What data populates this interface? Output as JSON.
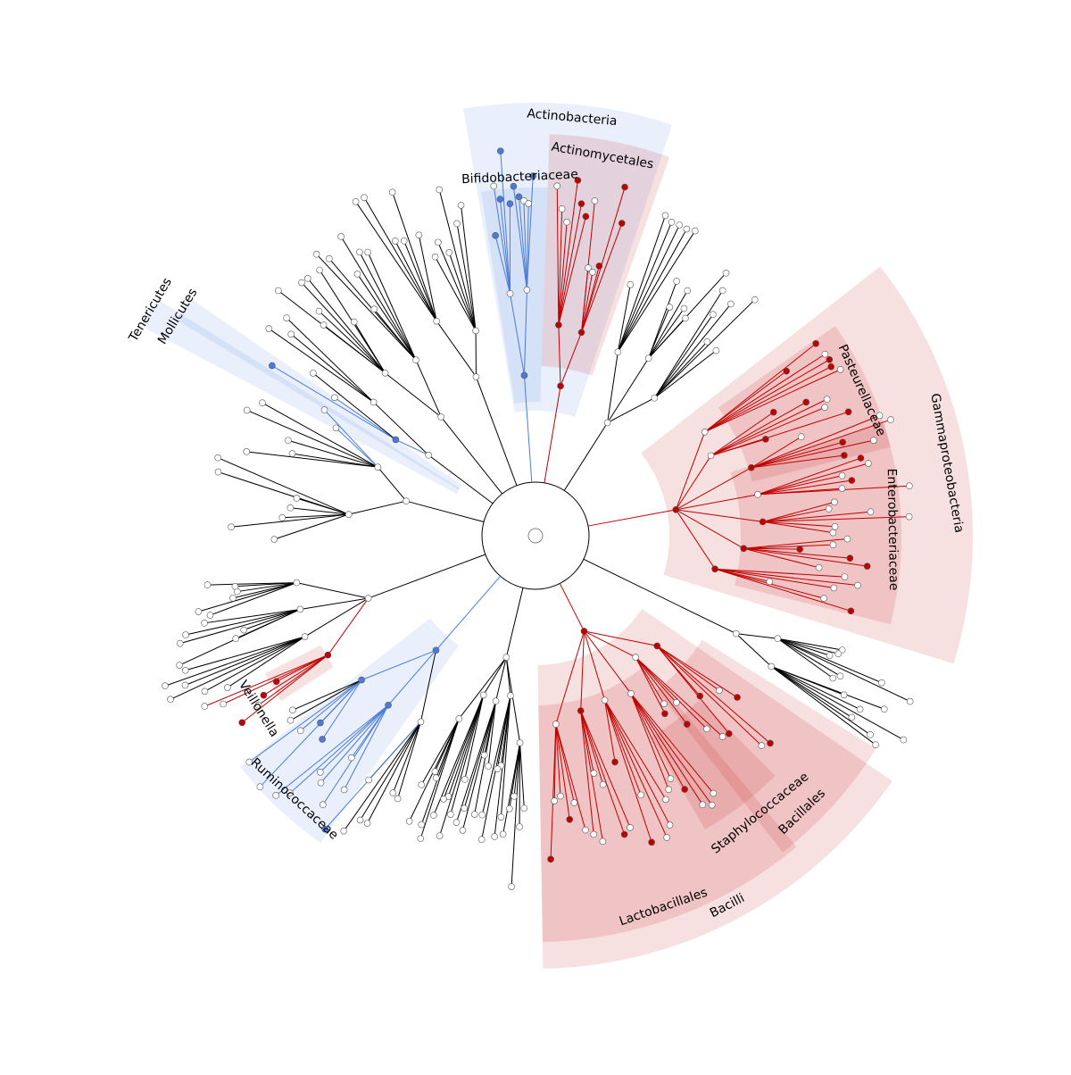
{
  "clades": [
    {
      "label": "Actinobacteria",
      "color": "#4a7bdc"
    },
    {
      "label": "Actinomycetales",
      "color": "#c00000"
    },
    {
      "label": "Bifidobacteriaceae",
      "color": "#4a7bdc"
    },
    {
      "label": "Tenericutes",
      "color": "#4a7bdc"
    },
    {
      "label": "Mollicutes",
      "color": "#4a7bdc"
    },
    {
      "label": "Gammaproteobacteria",
      "color": "#c00000"
    },
    {
      "label": "Pasteurellaceae",
      "color": "#c00000"
    },
    {
      "label": "Enterobacteriaceae",
      "color": "#c00000"
    },
    {
      "label": "Bacilli",
      "color": "#c00000"
    },
    {
      "label": "Bacillales",
      "color": "#c00000"
    },
    {
      "label": "Staphylococcaceae",
      "color": "#c00000"
    },
    {
      "label": "Lactobacillales",
      "color": "#c00000"
    },
    {
      "label": "Veillonella",
      "color": "#c00000"
    },
    {
      "label": "Ruminococcaceae",
      "color": "#4a7bdc"
    }
  ]
}
